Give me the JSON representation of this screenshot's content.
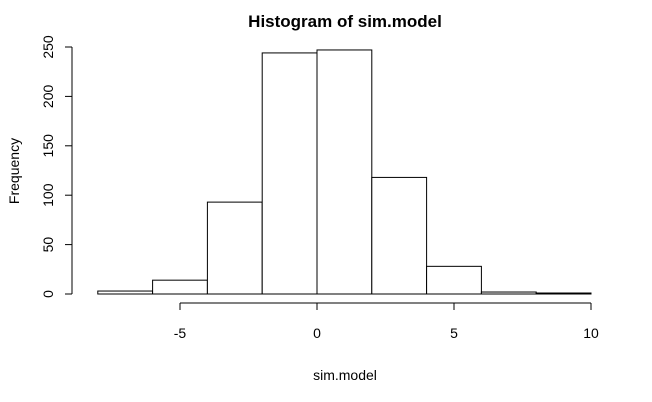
{
  "chart_data": {
    "type": "bar",
    "title": "Histogram of sim.model",
    "xlabel": "sim.model",
    "ylabel": "Frequency",
    "bins": [
      {
        "start": -8,
        "end": -6,
        "count": 3
      },
      {
        "start": -6,
        "end": -4,
        "count": 14
      },
      {
        "start": -4,
        "end": -2,
        "count": 93
      },
      {
        "start": -2,
        "end": 0,
        "count": 244
      },
      {
        "start": 0,
        "end": 2,
        "count": 247
      },
      {
        "start": 2,
        "end": 4,
        "count": 118
      },
      {
        "start": 4,
        "end": 6,
        "count": 28
      },
      {
        "start": 6,
        "end": 8,
        "count": 2
      },
      {
        "start": 8,
        "end": 10,
        "count": 1
      }
    ],
    "xlim": [
      -8,
      10
    ],
    "ylim": [
      0,
      250
    ],
    "x_ticks": [
      -5,
      0,
      5,
      10
    ],
    "x_tick_labels": [
      "-5",
      "0",
      "5",
      "10"
    ],
    "y_ticks": [
      0,
      50,
      100,
      150,
      200,
      250
    ],
    "y_tick_labels": [
      "0",
      "50",
      "100",
      "150",
      "200",
      "250"
    ],
    "grid": false,
    "colors": {
      "fill": "#ffffff",
      "stroke": "#000000"
    }
  }
}
